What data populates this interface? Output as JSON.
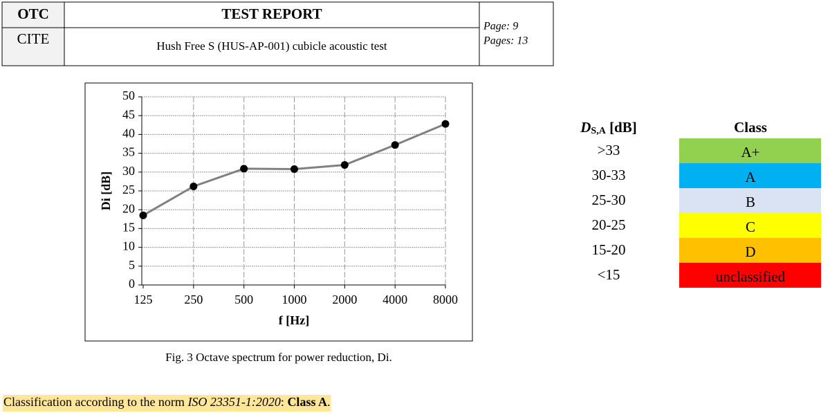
{
  "header": {
    "org_top": "OTC",
    "org_bottom": "CITE",
    "title": "TEST REPORT",
    "subtitle": "Hush Free S (HUS-AP-001) cubicle acoustic test",
    "page": "Page: 9",
    "pages": "Pages: 13"
  },
  "chart_data": {
    "type": "line",
    "categories": [
      "125",
      "250",
      "500",
      "1000",
      "2000",
      "4000",
      "8000"
    ],
    "values": [
      18.5,
      26.2,
      30.9,
      30.8,
      31.9,
      37.2,
      42.8
    ],
    "color": "#808080",
    "marker_color": "#000000",
    "ylim": [
      0,
      50
    ],
    "yticks": [
      0,
      5,
      10,
      15,
      20,
      25,
      30,
      35,
      40,
      45,
      50
    ],
    "grid": true,
    "xlabel": "f [Hz]",
    "ylabel": "Di [dB]"
  },
  "caption": "Fig. 3 Octave spectrum for power reduction, Di.",
  "class_table": {
    "header_symbol": "D",
    "header_subscript": "S,A",
    "header_unit": " [dB]",
    "header_class": "Class",
    "rows": [
      [
        ">33",
        "A+",
        "#92d050"
      ],
      [
        "30-33",
        "A",
        "#00b0f0"
      ],
      [
        "25-30",
        "B",
        "#dae3f3"
      ],
      [
        "20-25",
        "C",
        "#ffff00"
      ],
      [
        "15-20",
        "D",
        "#ffc000"
      ],
      [
        "<15",
        "unclassified",
        "#ff0000"
      ]
    ]
  },
  "classification": [
    "Classification according to the norm ",
    "ISO 23351-1:2020",
    ": ",
    "Class A",
    "."
  ]
}
